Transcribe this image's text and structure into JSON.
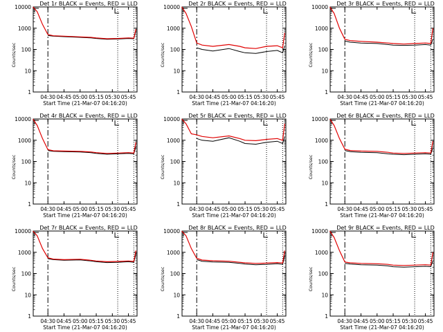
{
  "figure": {
    "xlabel": "Start Time (21-Mar-07 04:16:20)",
    "ylabel": "Counts/sec",
    "x_tick_labels": [
      "04:30",
      "04:45",
      "05:00",
      "05:15",
      "05:30",
      "05:45"
    ],
    "y_tick_labels": [
      "1",
      "10",
      "100",
      "1000",
      "10000"
    ]
  },
  "colors": {
    "events": "#000000",
    "lld": "#e00000"
  },
  "chart_data": [
    {
      "type": "line",
      "title": "Det 1r BLACK = Events, RED = LLD",
      "xlabel": "Start Time (21-Mar-07 04:16:20)",
      "ylabel": "Counts/sec",
      "y_scale": "log",
      "ylim": [
        1,
        10000
      ],
      "xlim": [
        "04:16:20",
        "05:53:00"
      ],
      "x_ticks": [
        "04:30",
        "04:45",
        "05:00",
        "05:15",
        "05:30",
        "05:45"
      ],
      "y_ticks": [
        1,
        10,
        100,
        1000,
        10000
      ],
      "x": [
        "04:16",
        "04:20",
        "04:25",
        "04:30",
        "04:35",
        "04:45",
        "05:00",
        "05:10",
        "05:15",
        "05:25",
        "05:35",
        "05:45",
        "05:50",
        "05:52"
      ],
      "series": [
        {
          "name": "Events",
          "values": [
            null,
            null,
            null,
            450,
            420,
            400,
            370,
            350,
            330,
            300,
            310,
            330,
            320,
            800
          ]
        },
        {
          "name": "LLD",
          "values": [
            10000,
            6000,
            1500,
            500,
            440,
            420,
            390,
            370,
            350,
            320,
            330,
            350,
            340,
            900
          ]
        }
      ]
    },
    {
      "type": "line",
      "title": "Det 2r BLACK = Events, RED = LLD",
      "xlabel": "Start Time (21-Mar-07 04:16:20)",
      "ylabel": "Counts/sec",
      "y_scale": "log",
      "ylim": [
        1,
        10000
      ],
      "xlim": [
        "04:16:20",
        "05:53:00"
      ],
      "x_ticks": [
        "04:30",
        "04:45",
        "05:00",
        "05:15",
        "05:30",
        "05:45"
      ],
      "y_ticks": [
        1,
        10,
        100,
        1000,
        10000
      ],
      "x": [
        "04:16",
        "04:20",
        "04:25",
        "04:30",
        "04:35",
        "04:45",
        "05:00",
        "05:10",
        "05:15",
        "05:25",
        "05:35",
        "05:45",
        "05:50",
        "05:52"
      ],
      "series": [
        {
          "name": "Events",
          "values": [
            null,
            null,
            null,
            120,
            100,
            85,
            110,
            80,
            70,
            65,
            80,
            90,
            70,
            150
          ]
        },
        {
          "name": "LLD",
          "values": [
            10000,
            5000,
            1200,
            200,
            160,
            140,
            170,
            140,
            120,
            110,
            140,
            150,
            120,
            600
          ]
        }
      ]
    },
    {
      "type": "line",
      "title": "Det 3r BLACK = Events, RED = LLD",
      "xlabel": "Start Time (21-Mar-07 04:16:20)",
      "ylabel": "Counts/sec",
      "y_scale": "log",
      "ylim": [
        1,
        10000
      ],
      "xlim": [
        "04:16:20",
        "05:53:00"
      ],
      "x_ticks": [
        "04:30",
        "04:45",
        "05:00",
        "05:15",
        "05:30",
        "05:45"
      ],
      "y_ticks": [
        1,
        10,
        100,
        1000,
        10000
      ],
      "x": [
        "04:16",
        "04:20",
        "04:25",
        "04:30",
        "04:35",
        "04:45",
        "05:00",
        "05:10",
        "05:15",
        "05:25",
        "05:35",
        "05:45",
        "05:50",
        "05:52"
      ],
      "series": [
        {
          "name": "Events",
          "values": [
            null,
            null,
            null,
            250,
            220,
            200,
            190,
            170,
            160,
            155,
            160,
            170,
            160,
            300
          ]
        },
        {
          "name": "LLD",
          "values": [
            10000,
            5000,
            1000,
            300,
            260,
            240,
            220,
            200,
            190,
            180,
            190,
            200,
            190,
            1000
          ]
        }
      ]
    },
    {
      "type": "line",
      "title": "Det 4r BLACK = Events, RED = LLD",
      "xlabel": "Start Time (21-Mar-07 04:16:20)",
      "ylabel": "Counts/sec",
      "y_scale": "log",
      "ylim": [
        1,
        10000
      ],
      "xlim": [
        "04:16:20",
        "05:53:00"
      ],
      "x_ticks": [
        "04:30",
        "04:45",
        "05:00",
        "05:15",
        "05:30",
        "05:45"
      ],
      "y_ticks": [
        1,
        10,
        100,
        1000,
        10000
      ],
      "x": [
        "04:16",
        "04:20",
        "04:25",
        "04:30",
        "04:35",
        "04:45",
        "05:00",
        "05:10",
        "05:15",
        "05:25",
        "05:35",
        "05:45",
        "05:50",
        "05:52"
      ],
      "series": [
        {
          "name": "Events",
          "values": [
            null,
            null,
            null,
            330,
            300,
            290,
            280,
            260,
            240,
            220,
            230,
            240,
            230,
            500
          ]
        },
        {
          "name": "LLD",
          "values": [
            10000,
            5000,
            1200,
            360,
            320,
            310,
            300,
            280,
            260,
            240,
            250,
            260,
            250,
            800
          ]
        }
      ]
    },
    {
      "type": "line",
      "title": "Det 5r BLACK = Events, RED = LLD",
      "xlabel": "Start Time (21-Mar-07 04:16:20)",
      "ylabel": "Counts/sec",
      "y_scale": "log",
      "ylim": [
        1,
        10000
      ],
      "xlim": [
        "04:16:20",
        "05:53:00"
      ],
      "x_ticks": [
        "04:30",
        "04:45",
        "05:00",
        "05:15",
        "05:30",
        "05:45"
      ],
      "y_ticks": [
        1,
        10,
        100,
        1000,
        10000
      ],
      "x": [
        "04:16",
        "04:20",
        "04:25",
        "04:30",
        "04:35",
        "04:45",
        "05:00",
        "05:10",
        "05:15",
        "05:25",
        "05:35",
        "05:45",
        "05:50",
        "05:52"
      ],
      "series": [
        {
          "name": "Events",
          "values": [
            null,
            null,
            null,
            1200,
            1000,
            900,
            1300,
            900,
            700,
            650,
            800,
            900,
            700,
            1500
          ]
        },
        {
          "name": "LLD",
          "values": [
            10000,
            6000,
            2000,
            1800,
            1500,
            1300,
            1600,
            1200,
            1000,
            950,
            1100,
            1200,
            1000,
            6000
          ]
        }
      ]
    },
    {
      "type": "line",
      "title": "Det 6r BLACK = Events, RED = LLD",
      "xlabel": "Start Time (21-Mar-07 04:16:20)",
      "ylabel": "Counts/sec",
      "y_scale": "log",
      "ylim": [
        1,
        10000
      ],
      "xlim": [
        "04:16:20",
        "05:53:00"
      ],
      "x_ticks": [
        "04:30",
        "04:45",
        "05:00",
        "05:15",
        "05:30",
        "05:45"
      ],
      "y_ticks": [
        1,
        10,
        100,
        1000,
        10000
      ],
      "x": [
        "04:16",
        "04:20",
        "04:25",
        "04:30",
        "04:35",
        "04:45",
        "05:00",
        "05:10",
        "05:15",
        "05:25",
        "05:35",
        "05:45",
        "05:50",
        "05:52"
      ],
      "series": [
        {
          "name": "Events",
          "values": [
            null,
            null,
            null,
            330,
            290,
            270,
            260,
            230,
            220,
            210,
            220,
            230,
            220,
            450
          ]
        },
        {
          "name": "LLD",
          "values": [
            10000,
            5000,
            1200,
            380,
            330,
            310,
            300,
            270,
            250,
            240,
            250,
            260,
            250,
            900
          ]
        }
      ]
    },
    {
      "type": "line",
      "title": "Det 7r BLACK = Events, RED = LLD",
      "xlabel": "Start Time (21-Mar-07 04:16:20)",
      "ylabel": "Counts/sec",
      "y_scale": "log",
      "ylim": [
        1,
        10000
      ],
      "xlim": [
        "04:16:20",
        "05:53:00"
      ],
      "x_ticks": [
        "04:30",
        "04:45",
        "05:00",
        "05:15",
        "05:30",
        "05:45"
      ],
      "y_ticks": [
        1,
        10,
        100,
        1000,
        10000
      ],
      "x": [
        "04:16",
        "04:20",
        "04:25",
        "04:30",
        "04:35",
        "04:45",
        "05:00",
        "05:10",
        "05:15",
        "05:25",
        "05:35",
        "05:45",
        "05:50",
        "05:52"
      ],
      "series": [
        {
          "name": "Events",
          "values": [
            null,
            null,
            null,
            500,
            450,
            420,
            440,
            390,
            360,
            330,
            340,
            360,
            340,
            900
          ]
        },
        {
          "name": "LLD",
          "values": [
            10000,
            6000,
            1500,
            550,
            480,
            450,
            470,
            420,
            390,
            360,
            370,
            390,
            370,
            1200
          ]
        }
      ]
    },
    {
      "type": "line",
      "title": "Det 8r BLACK = Events, RED = LLD",
      "xlabel": "Start Time (21-Mar-07 04:16:20)",
      "ylabel": "Counts/sec",
      "y_scale": "log",
      "ylim": [
        1,
        10000
      ],
      "xlim": [
        "04:16:20",
        "05:53:00"
      ],
      "x_ticks": [
        "04:30",
        "04:45",
        "05:00",
        "05:15",
        "05:30",
        "05:45"
      ],
      "y_ticks": [
        1,
        10,
        100,
        1000,
        10000
      ],
      "x": [
        "04:16",
        "04:20",
        "04:25",
        "04:30",
        "04:35",
        "04:45",
        "05:00",
        "05:10",
        "05:15",
        "05:25",
        "05:35",
        "05:45",
        "05:50",
        "05:52"
      ],
      "series": [
        {
          "name": "Events",
          "values": [
            null,
            null,
            null,
            450,
            380,
            350,
            340,
            300,
            280,
            260,
            270,
            290,
            270,
            700
          ]
        },
        {
          "name": "LLD",
          "values": [
            10000,
            6000,
            1500,
            520,
            430,
            400,
            380,
            340,
            320,
            300,
            310,
            330,
            310,
            1200
          ]
        }
      ]
    },
    {
      "type": "line",
      "title": "Det 9r BLACK = Events, RED = LLD",
      "xlabel": "Start Time (21-Mar-07 04:16:20)",
      "ylabel": "Counts/sec",
      "y_scale": "log",
      "ylim": [
        1,
        10000
      ],
      "xlim": [
        "04:16:20",
        "05:53:00"
      ],
      "x_ticks": [
        "04:30",
        "04:45",
        "05:00",
        "05:15",
        "05:30",
        "05:45"
      ],
      "y_ticks": [
        1,
        10,
        100,
        1000,
        10000
      ],
      "x": [
        "04:16",
        "04:20",
        "04:25",
        "04:30",
        "04:35",
        "04:45",
        "05:00",
        "05:10",
        "05:15",
        "05:25",
        "05:35",
        "05:45",
        "05:50",
        "05:52"
      ],
      "series": [
        {
          "name": "Events",
          "values": [
            null,
            null,
            null,
            300,
            280,
            260,
            250,
            230,
            210,
            200,
            210,
            220,
            210,
            400
          ]
        },
        {
          "name": "LLD",
          "values": [
            10000,
            5000,
            1200,
            350,
            320,
            300,
            290,
            270,
            250,
            240,
            250,
            260,
            250,
            1000
          ]
        }
      ]
    }
  ]
}
